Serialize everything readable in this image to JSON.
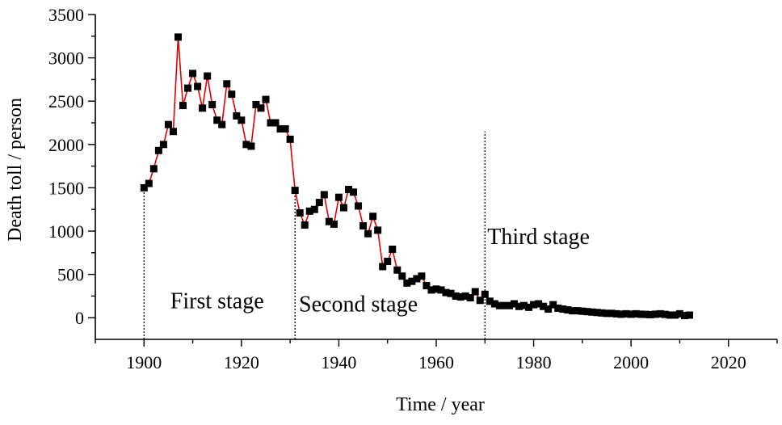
{
  "chart_data": {
    "type": "line",
    "title": "",
    "xlabel": "Time / year",
    "ylabel": "Death toll / person",
    "xlim": [
      1890,
      2030
    ],
    "ylim": [
      -250,
      3500
    ],
    "xticks": [
      1900,
      1920,
      1940,
      1960,
      1980,
      2000,
      2020
    ],
    "yticks": [
      0,
      500,
      1000,
      1500,
      2000,
      2500,
      3000,
      3500
    ],
    "grid": false,
    "series": [
      {
        "marker": "square",
        "color": "#000000",
        "line_color": "#e00000",
        "points": [
          [
            1900,
            1500
          ],
          [
            1901,
            1550
          ],
          [
            1902,
            1720
          ],
          [
            1903,
            1930
          ],
          [
            1904,
            2000
          ],
          [
            1905,
            2230
          ],
          [
            1906,
            2150
          ],
          [
            1907,
            3240
          ],
          [
            1908,
            2450
          ],
          [
            1909,
            2650
          ],
          [
            1910,
            2820
          ],
          [
            1911,
            2670
          ],
          [
            1912,
            2420
          ],
          [
            1913,
            2790
          ],
          [
            1914,
            2460
          ],
          [
            1915,
            2280
          ],
          [
            1916,
            2230
          ],
          [
            1917,
            2700
          ],
          [
            1918,
            2580
          ],
          [
            1919,
            2330
          ],
          [
            1920,
            2280
          ],
          [
            1921,
            2000
          ],
          [
            1922,
            1980
          ],
          [
            1923,
            2460
          ],
          [
            1924,
            2420
          ],
          [
            1925,
            2520
          ],
          [
            1926,
            2250
          ],
          [
            1927,
            2250
          ],
          [
            1928,
            2180
          ],
          [
            1929,
            2180
          ],
          [
            1930,
            2060
          ],
          [
            1931,
            1470
          ],
          [
            1932,
            1210
          ],
          [
            1933,
            1070
          ],
          [
            1934,
            1230
          ],
          [
            1935,
            1250
          ],
          [
            1936,
            1330
          ],
          [
            1937,
            1420
          ],
          [
            1938,
            1110
          ],
          [
            1939,
            1080
          ],
          [
            1940,
            1390
          ],
          [
            1941,
            1270
          ],
          [
            1942,
            1480
          ],
          [
            1943,
            1450
          ],
          [
            1944,
            1290
          ],
          [
            1945,
            1060
          ],
          [
            1946,
            970
          ],
          [
            1947,
            1170
          ],
          [
            1948,
            1010
          ],
          [
            1949,
            590
          ],
          [
            1950,
            650
          ],
          [
            1951,
            790
          ],
          [
            1952,
            550
          ],
          [
            1953,
            480
          ],
          [
            1954,
            400
          ],
          [
            1955,
            420
          ],
          [
            1956,
            450
          ],
          [
            1957,
            480
          ],
          [
            1958,
            370
          ],
          [
            1959,
            320
          ],
          [
            1960,
            330
          ],
          [
            1961,
            320
          ],
          [
            1962,
            290
          ],
          [
            1963,
            280
          ],
          [
            1964,
            250
          ],
          [
            1965,
            240
          ],
          [
            1966,
            250
          ],
          [
            1967,
            230
          ],
          [
            1968,
            300
          ],
          [
            1969,
            200
          ],
          [
            1970,
            270
          ],
          [
            1971,
            190
          ],
          [
            1972,
            160
          ],
          [
            1973,
            140
          ],
          [
            1974,
            140
          ],
          [
            1975,
            140
          ],
          [
            1976,
            160
          ],
          [
            1977,
            130
          ],
          [
            1978,
            140
          ],
          [
            1979,
            120
          ],
          [
            1980,
            150
          ],
          [
            1981,
            160
          ],
          [
            1982,
            130
          ],
          [
            1983,
            100
          ],
          [
            1984,
            150
          ],
          [
            1985,
            110
          ],
          [
            1986,
            100
          ],
          [
            1987,
            90
          ],
          [
            1988,
            80
          ],
          [
            1989,
            80
          ],
          [
            1990,
            75
          ],
          [
            1991,
            70
          ],
          [
            1992,
            65
          ],
          [
            1993,
            60
          ],
          [
            1994,
            55
          ],
          [
            1995,
            50
          ],
          [
            1996,
            50
          ],
          [
            1997,
            45
          ],
          [
            1998,
            40
          ],
          [
            1999,
            45
          ],
          [
            2000,
            40
          ],
          [
            2001,
            45
          ],
          [
            2002,
            40
          ],
          [
            2003,
            38
          ],
          [
            2004,
            35
          ],
          [
            2005,
            40
          ],
          [
            2006,
            45
          ],
          [
            2007,
            38
          ],
          [
            2008,
            30
          ],
          [
            2009,
            30
          ],
          [
            2010,
            45
          ],
          [
            2011,
            25
          ],
          [
            2012,
            30
          ]
        ]
      }
    ],
    "dividers": [
      1900,
      1931,
      1970
    ],
    "annotations": [
      {
        "text": "First stage",
        "x": 1915,
        "y": 110
      },
      {
        "text": "Second stage",
        "x": 1944,
        "y": 70
      },
      {
        "text": "Third stage",
        "x": 1981,
        "y": 850
      }
    ]
  }
}
